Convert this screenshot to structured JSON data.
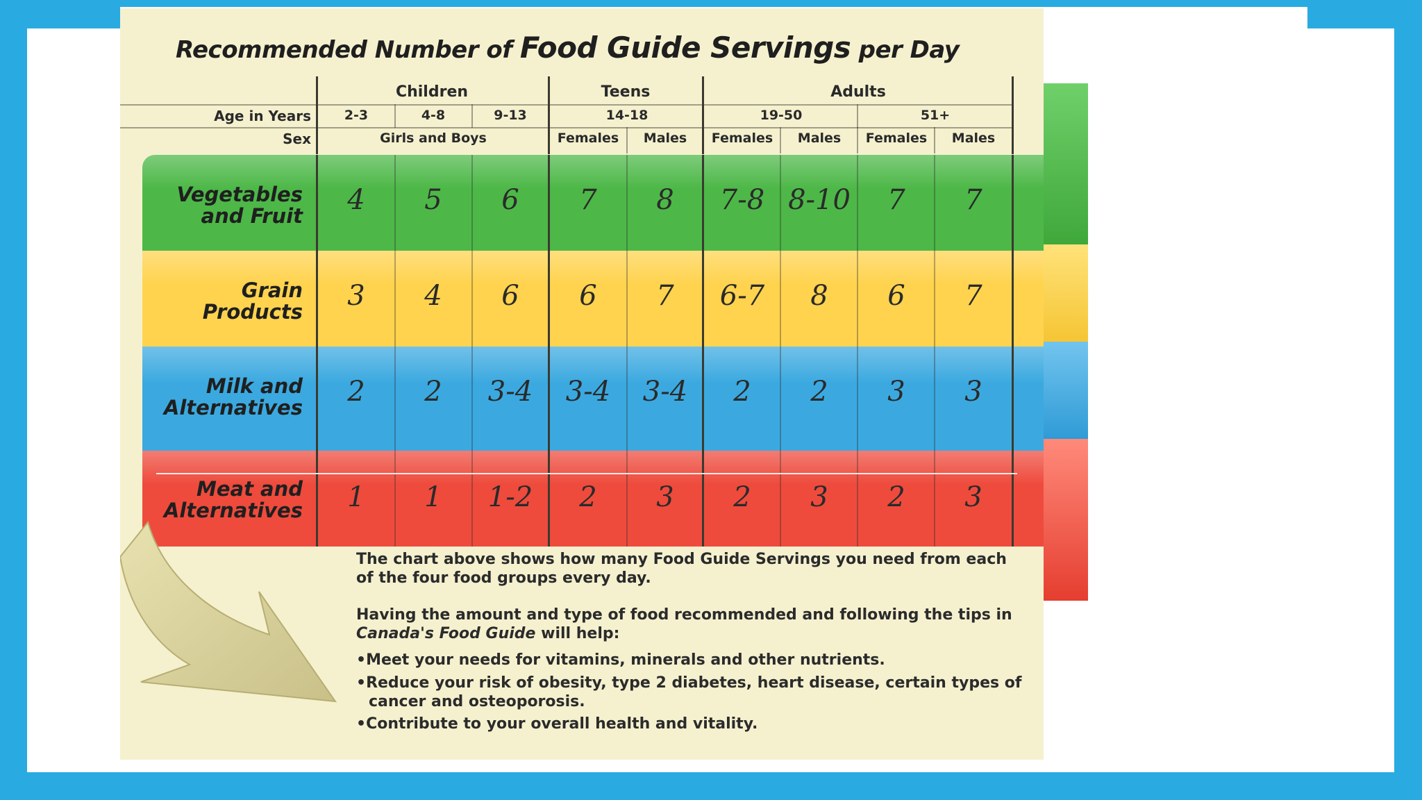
{
  "title": {
    "part1": "Recommended Number of",
    "part2": "Food Guide Servings",
    "part3": "per Day"
  },
  "headers": {
    "groups": [
      "Children",
      "Teens",
      "Adults"
    ],
    "age_label": "Age in Years",
    "ages": [
      "2-3",
      "4-8",
      "9-13",
      "14-18",
      "19-50",
      "51+"
    ],
    "sex_label": "Sex",
    "sexes": [
      "Girls and Boys",
      "Females",
      "Males",
      "Females",
      "Males",
      "Females",
      "Males"
    ]
  },
  "rows": [
    {
      "label": "Vegetables\nand Fruit",
      "color": "#4DB848",
      "values": [
        "4",
        "5",
        "6",
        "7",
        "8",
        "7-8",
        "8-10",
        "7",
        "7"
      ]
    },
    {
      "label": "Grain\nProducts",
      "color": "#FFD34E",
      "values": [
        "3",
        "4",
        "6",
        "6",
        "7",
        "6-7",
        "8",
        "6",
        "7"
      ]
    },
    {
      "label": "Milk and\nAlternatives",
      "color": "#3BA9E0",
      "values": [
        "2",
        "2",
        "3-4",
        "3-4",
        "3-4",
        "2",
        "2",
        "3",
        "3"
      ]
    },
    {
      "label": "Meat and\nAlternatives",
      "color": "#EE4B3D",
      "values": [
        "1",
        "1",
        "1-2",
        "2",
        "3",
        "2",
        "3",
        "2",
        "3"
      ]
    }
  ],
  "info": {
    "para1": "The chart above shows how many Food Guide Servings you need from each of the four food groups every day.",
    "para2_a": "Having the amount and type of food recommended and following the tips in",
    "para2_b": "Canada's Food Guide",
    "para2_c": "will help:",
    "bullets": [
      "Meet your needs for vitamins, minerals and other nutrients.",
      "Reduce your risk of obesity, type 2 diabetes, heart disease, certain types of cancer and osteoporosis.",
      "Contribute to your overall health and vitality."
    ]
  },
  "colors": {
    "background": "#29ABE2",
    "poster": "#F5F1CF",
    "green": "#4DB848",
    "yellow": "#FFD34E",
    "blue": "#3BA9E0",
    "red": "#EE4B3D"
  }
}
